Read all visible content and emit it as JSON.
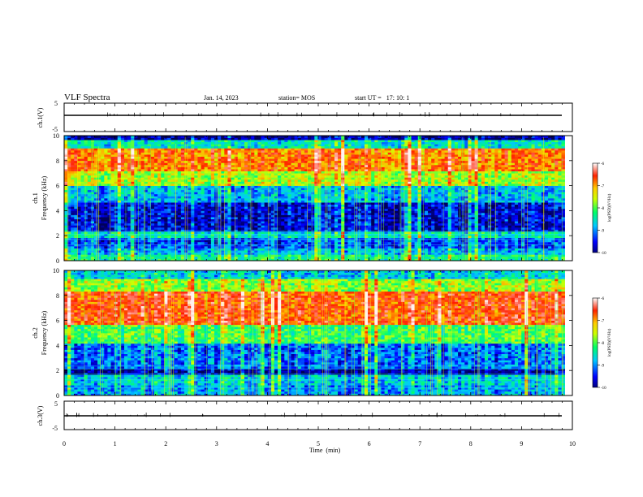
{
  "header": {
    "title": "VLF Spectra",
    "date": "Jan. 14, 2023",
    "station": "station= MOS",
    "start_ut": "start UT =   17: 10: 1"
  },
  "chart_data": [
    {
      "type": "line",
      "id": "ch1-waveform",
      "ylabel": "ch.1(V)",
      "ylim": [
        -5,
        5
      ],
      "yticks": [
        "5",
        "-5"
      ],
      "x": [
        0,
        10
      ],
      "values": [
        0,
        0
      ],
      "color": "#000000"
    },
    {
      "type": "heatmap",
      "id": "ch1-spectrogram",
      "ylabel_line1": "ch.1",
      "ylabel_line2": "Frequency (kHz)",
      "ylim": [
        0,
        10
      ],
      "yticks": [
        "0",
        "2",
        "4",
        "6",
        "8",
        "10"
      ],
      "xlim": [
        0,
        9.85
      ],
      "colorbar": {
        "label": "log(PSD)(V²/Hz)",
        "range": [
          -10,
          -6
        ],
        "ticks": [
          "-6",
          "-7",
          "-8",
          "-9",
          "-10"
        ]
      },
      "bands": [
        {
          "fmin": 0.0,
          "fmax": 0.5,
          "level": -8.4
        },
        {
          "fmin": 0.5,
          "fmax": 1.0,
          "level": -8.9
        },
        {
          "fmin": 1.0,
          "fmax": 1.8,
          "level": -9.3
        },
        {
          "fmin": 1.8,
          "fmax": 2.4,
          "level": -8.6
        },
        {
          "fmin": 2.4,
          "fmax": 4.6,
          "level": -9.6
        },
        {
          "fmin": 4.6,
          "fmax": 6.0,
          "level": -8.9
        },
        {
          "fmin": 6.0,
          "fmax": 7.2,
          "level": -7.8
        },
        {
          "fmin": 7.2,
          "fmax": 9.0,
          "level": -7.1
        },
        {
          "fmin": 9.0,
          "fmax": 9.6,
          "level": -8.6
        },
        {
          "fmin": 9.6,
          "fmax": 10.0,
          "level": -9.8
        }
      ]
    },
    {
      "type": "heatmap",
      "id": "ch2-spectrogram",
      "ylabel_line1": "ch.2",
      "ylabel_line2": "Frequency (kHz)",
      "ylim": [
        0,
        10
      ],
      "yticks": [
        "0",
        "2",
        "4",
        "6",
        "8",
        "10"
      ],
      "xlim": [
        0,
        9.85
      ],
      "colorbar": {
        "label": "log(PSD)(V²/Hz)",
        "range": [
          -10,
          -6
        ],
        "ticks": [
          "-6",
          "-7",
          "-8",
          "-9",
          "-10"
        ]
      },
      "bands": [
        {
          "fmin": 0.0,
          "fmax": 0.8,
          "level": -9.0
        },
        {
          "fmin": 0.8,
          "fmax": 1.6,
          "level": -8.8
        },
        {
          "fmin": 1.6,
          "fmax": 2.2,
          "level": -9.8
        },
        {
          "fmin": 2.2,
          "fmax": 4.2,
          "level": -9.2
        },
        {
          "fmin": 4.2,
          "fmax": 5.6,
          "level": -8.2
        },
        {
          "fmin": 5.6,
          "fmax": 8.4,
          "level": -6.9
        },
        {
          "fmin": 8.4,
          "fmax": 9.4,
          "level": -7.9
        },
        {
          "fmin": 9.4,
          "fmax": 10.0,
          "level": -8.8
        }
      ]
    },
    {
      "type": "line",
      "id": "ch3-waveform",
      "ylabel": "ch.3(V)",
      "ylim": [
        -5,
        5
      ],
      "yticks": [
        "5",
        "-5"
      ],
      "x": [
        0,
        10
      ],
      "values": [
        0,
        0
      ],
      "color": "#000000"
    }
  ],
  "xaxis": {
    "label": "Time  (min)",
    "ticks": [
      "0",
      "1",
      "2",
      "3",
      "4",
      "5",
      "6",
      "7",
      "8",
      "9",
      "10"
    ]
  }
}
